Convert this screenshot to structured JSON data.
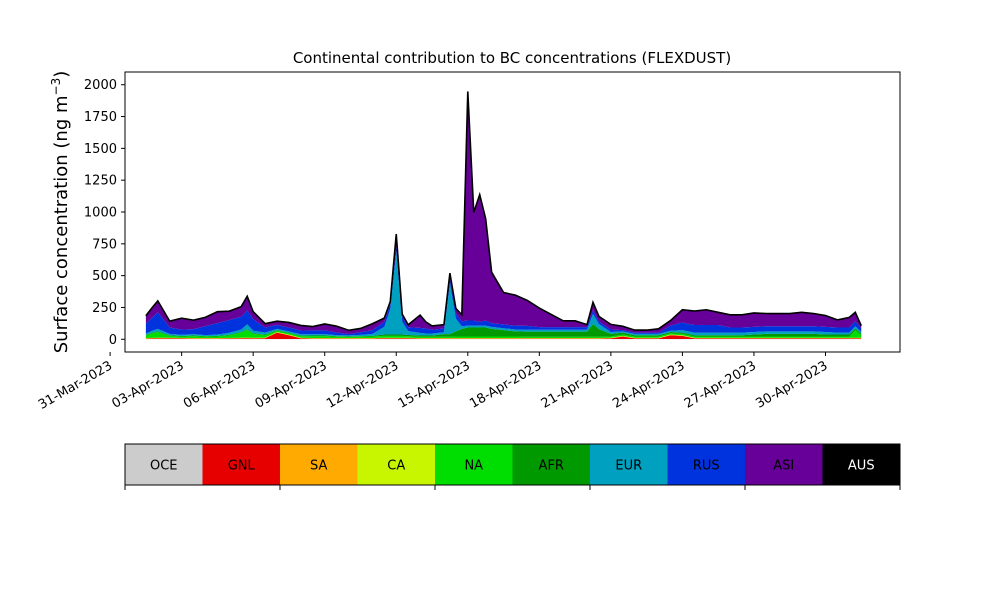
{
  "chart_data": {
    "type": "area",
    "stacked": true,
    "title": "Continental contribution to BC concentrations (FLEXDUST)",
    "ylabel_main": "Surface concentration (ng m",
    "ylabel_sup": "−3",
    "ylabel_close": ")",
    "xlabel": "",
    "ylim": [
      -100,
      2100
    ],
    "yticks": [
      0,
      250,
      500,
      750,
      1000,
      1250,
      1500,
      1750,
      2000
    ],
    "xlim": [
      "2023-03-31T15:00",
      "2023-05-03T03:00"
    ],
    "xticks": [
      "31-Mar-2023",
      "03-Apr-2023",
      "06-Apr-2023",
      "09-Apr-2023",
      "12-Apr-2023",
      "15-Apr-2023",
      "18-Apr-2023",
      "21-Apr-2023",
      "24-Apr-2023",
      "27-Apr-2023",
      "30-Apr-2023"
    ],
    "x": [
      "2023-04-01T12:00",
      "2023-04-01T18:00",
      "2023-04-02T00:00",
      "2023-04-02T12:00",
      "2023-04-03T00:00",
      "2023-04-03T12:00",
      "2023-04-04T00:00",
      "2023-04-04T12:00",
      "2023-04-05T00:00",
      "2023-04-05T12:00",
      "2023-04-05T18:00",
      "2023-04-06T00:00",
      "2023-04-06T12:00",
      "2023-04-07T00:00",
      "2023-04-07T12:00",
      "2023-04-08T00:00",
      "2023-04-08T12:00",
      "2023-04-09T00:00",
      "2023-04-09T12:00",
      "2023-04-10T00:00",
      "2023-04-10T12:00",
      "2023-04-11T00:00",
      "2023-04-11T12:00",
      "2023-04-11T18:00",
      "2023-04-12T00:00",
      "2023-04-12T06:00",
      "2023-04-12T12:00",
      "2023-04-13T00:00",
      "2023-04-13T06:00",
      "2023-04-13T12:00",
      "2023-04-14T00:00",
      "2023-04-14T06:00",
      "2023-04-14T12:00",
      "2023-04-14T18:00",
      "2023-04-15T00:00",
      "2023-04-15T06:00",
      "2023-04-15T12:00",
      "2023-04-15T18:00",
      "2023-04-16T00:00",
      "2023-04-16T12:00",
      "2023-04-17T00:00",
      "2023-04-17T12:00",
      "2023-04-18T00:00",
      "2023-04-18T12:00",
      "2023-04-19T00:00",
      "2023-04-19T12:00",
      "2023-04-20T00:00",
      "2023-04-20T06:00",
      "2023-04-20T12:00",
      "2023-04-21T00:00",
      "2023-04-21T12:00",
      "2023-04-22T00:00",
      "2023-04-22T12:00",
      "2023-04-23T00:00",
      "2023-04-23T12:00",
      "2023-04-24T00:00",
      "2023-04-24T12:00",
      "2023-04-25T00:00",
      "2023-04-25T12:00",
      "2023-04-26T00:00",
      "2023-04-26T12:00",
      "2023-04-27T00:00",
      "2023-04-27T12:00",
      "2023-04-28T00:00",
      "2023-04-28T12:00",
      "2023-04-29T00:00",
      "2023-04-29T12:00",
      "2023-04-30T00:00",
      "2023-04-30T12:00",
      "2023-05-01T00:00",
      "2023-05-01T06:00",
      "2023-05-01T12:00"
    ],
    "series": [
      {
        "name": "OCE",
        "color": "#cccccc",
        "values": [
          2,
          2,
          2,
          2,
          2,
          2,
          2,
          2,
          2,
          2,
          2,
          2,
          2,
          2,
          2,
          2,
          2,
          2,
          2,
          2,
          2,
          2,
          2,
          2,
          2,
          2,
          2,
          2,
          2,
          2,
          2,
          2,
          2,
          2,
          2,
          2,
          2,
          2,
          2,
          2,
          2,
          2,
          2,
          2,
          2,
          2,
          2,
          2,
          2,
          2,
          2,
          2,
          2,
          2,
          2,
          2,
          2,
          2,
          2,
          2,
          2,
          2,
          2,
          2,
          2,
          2,
          2,
          2,
          2,
          2,
          2,
          2
        ]
      },
      {
        "name": "GNL",
        "color": "#e60000",
        "values": [
          3,
          4,
          5,
          5,
          4,
          3,
          3,
          3,
          4,
          5,
          6,
          5,
          6,
          50,
          30,
          5,
          3,
          3,
          3,
          3,
          3,
          3,
          5,
          5,
          5,
          5,
          5,
          3,
          3,
          3,
          3,
          3,
          3,
          3,
          3,
          3,
          3,
          3,
          3,
          3,
          3,
          3,
          3,
          3,
          3,
          3,
          3,
          3,
          3,
          5,
          20,
          5,
          5,
          5,
          30,
          25,
          5,
          5,
          5,
          5,
          5,
          5,
          5,
          5,
          5,
          5,
          5,
          5,
          5,
          5,
          5,
          5
        ]
      },
      {
        "name": "SA",
        "color": "#ffaa00",
        "values": [
          2,
          2,
          2,
          2,
          2,
          2,
          2,
          2,
          2,
          2,
          2,
          2,
          2,
          2,
          2,
          2,
          2,
          2,
          2,
          2,
          2,
          2,
          2,
          2,
          2,
          2,
          2,
          2,
          2,
          2,
          2,
          2,
          2,
          2,
          2,
          2,
          2,
          2,
          2,
          2,
          2,
          2,
          2,
          2,
          2,
          2,
          2,
          2,
          2,
          2,
          2,
          2,
          2,
          2,
          2,
          2,
          2,
          2,
          2,
          2,
          2,
          2,
          2,
          2,
          2,
          2,
          2,
          2,
          2,
          2,
          2,
          2
        ]
      },
      {
        "name": "CA",
        "color": "#c8f500",
        "values": [
          3,
          3,
          3,
          3,
          3,
          3,
          3,
          3,
          3,
          3,
          3,
          3,
          3,
          3,
          3,
          3,
          3,
          3,
          3,
          3,
          3,
          3,
          3,
          3,
          3,
          3,
          3,
          3,
          3,
          3,
          3,
          3,
          3,
          3,
          3,
          3,
          3,
          3,
          3,
          3,
          3,
          3,
          3,
          3,
          3,
          3,
          3,
          3,
          3,
          3,
          3,
          3,
          3,
          3,
          3,
          3,
          3,
          3,
          3,
          3,
          3,
          3,
          3,
          3,
          3,
          3,
          3,
          3,
          3,
          3,
          3,
          3
        ]
      },
      {
        "name": "NA",
        "color": "#00dd00",
        "values": [
          20,
          35,
          45,
          15,
          10,
          15,
          10,
          12,
          20,
          40,
          60,
          30,
          20,
          10,
          10,
          12,
          15,
          15,
          10,
          8,
          10,
          12,
          15,
          15,
          15,
          15,
          12,
          10,
          10,
          10,
          10,
          10,
          12,
          12,
          12,
          12,
          12,
          12,
          12,
          12,
          12,
          10,
          10,
          10,
          10,
          10,
          10,
          10,
          10,
          10,
          10,
          10,
          10,
          10,
          10,
          10,
          10,
          10,
          10,
          10,
          10,
          10,
          10,
          10,
          10,
          10,
          10,
          10,
          10,
          10,
          60,
          20
        ]
      },
      {
        "name": "AFR",
        "color": "#009900",
        "values": [
          5,
          5,
          5,
          5,
          5,
          5,
          5,
          5,
          5,
          5,
          5,
          5,
          5,
          5,
          5,
          5,
          5,
          5,
          5,
          5,
          5,
          5,
          10,
          10,
          10,
          10,
          10,
          10,
          10,
          10,
          20,
          20,
          40,
          60,
          70,
          70,
          70,
          70,
          60,
          50,
          40,
          40,
          40,
          40,
          40,
          40,
          40,
          100,
          60,
          20,
          15,
          10,
          10,
          10,
          10,
          10,
          10,
          10,
          10,
          10,
          10,
          15,
          20,
          20,
          20,
          20,
          20,
          15,
          15,
          15,
          15,
          10
        ]
      },
      {
        "name": "EUR",
        "color": "#00a0c0",
        "values": [
          10,
          15,
          20,
          10,
          10,
          10,
          8,
          10,
          15,
          20,
          40,
          20,
          15,
          10,
          10,
          10,
          10,
          10,
          8,
          8,
          10,
          15,
          60,
          200,
          650,
          100,
          30,
          20,
          15,
          15,
          15,
          400,
          100,
          20,
          15,
          15,
          15,
          15,
          15,
          15,
          15,
          15,
          15,
          15,
          15,
          15,
          15,
          80,
          40,
          15,
          10,
          10,
          10,
          10,
          10,
          20,
          20,
          20,
          20,
          20,
          20,
          20,
          20,
          20,
          20,
          20,
          20,
          20,
          15,
          15,
          15,
          15
        ]
      },
      {
        "name": "RUS",
        "color": "#0033dd",
        "values": [
          80,
          100,
          130,
          50,
          40,
          40,
          70,
          90,
          100,
          100,
          110,
          90,
          40,
          30,
          30,
          30,
          30,
          30,
          20,
          10,
          20,
          30,
          40,
          40,
          40,
          40,
          30,
          40,
          40,
          30,
          30,
          40,
          40,
          40,
          40,
          40,
          30,
          40,
          30,
          30,
          30,
          30,
          20,
          20,
          20,
          20,
          20,
          30,
          20,
          20,
          10,
          10,
          10,
          10,
          40,
          60,
          60,
          60,
          60,
          40,
          40,
          40,
          40,
          40,
          40,
          40,
          40,
          40,
          40,
          40,
          40,
          30
        ]
      },
      {
        "name": "ASI",
        "color": "#660099",
        "values": [
          60,
          80,
          90,
          50,
          90,
          70,
          70,
          90,
          70,
          80,
          110,
          60,
          30,
          30,
          40,
          40,
          30,
          50,
          50,
          30,
          30,
          50,
          30,
          20,
          100,
          20,
          20,
          100,
          50,
          30,
          30,
          40,
          40,
          50,
          1800,
          850,
          1000,
          800,
          400,
          250,
          240,
          200,
          150,
          100,
          50,
          50,
          20,
          60,
          40,
          40,
          30,
          20,
          20,
          30,
          40,
          100,
          110,
          120,
          100,
          100,
          100,
          110,
          100,
          100,
          100,
          110,
          100,
          90,
          60,
          80,
          70,
          20
        ]
      },
      {
        "name": "AUS",
        "color": "#000000",
        "values": [
          0,
          0,
          0,
          0,
          0,
          0,
          0,
          0,
          0,
          0,
          0,
          0,
          0,
          0,
          0,
          0,
          0,
          0,
          0,
          0,
          0,
          0,
          0,
          0,
          0,
          0,
          0,
          0,
          0,
          0,
          0,
          0,
          0,
          0,
          0,
          0,
          0,
          0,
          0,
          0,
          0,
          0,
          0,
          0,
          0,
          0,
          0,
          0,
          0,
          0,
          0,
          0,
          0,
          0,
          0,
          0,
          0,
          0,
          0,
          0,
          0,
          0,
          0,
          0,
          0,
          0,
          0,
          0,
          0,
          0,
          0,
          0
        ]
      }
    ],
    "legend": {
      "placement": "bottom",
      "items": [
        {
          "label": "OCE",
          "color": "#cccccc",
          "text_color": "#000000"
        },
        {
          "label": "GNL",
          "color": "#e60000",
          "text_color": "#000000"
        },
        {
          "label": "SA",
          "color": "#ffaa00",
          "text_color": "#000000"
        },
        {
          "label": "CA",
          "color": "#c8f500",
          "text_color": "#000000"
        },
        {
          "label": "NA",
          "color": "#00dd00",
          "text_color": "#000000"
        },
        {
          "label": "AFR",
          "color": "#009900",
          "text_color": "#000000"
        },
        {
          "label": "EUR",
          "color": "#00a0c0",
          "text_color": "#000000"
        },
        {
          "label": "RUS",
          "color": "#0033dd",
          "text_color": "#000000"
        },
        {
          "label": "ASI",
          "color": "#660099",
          "text_color": "#000000"
        },
        {
          "label": "AUS",
          "color": "#000000",
          "text_color": "#ffffff"
        }
      ]
    },
    "total_line_color": "#000000",
    "grid": false
  }
}
